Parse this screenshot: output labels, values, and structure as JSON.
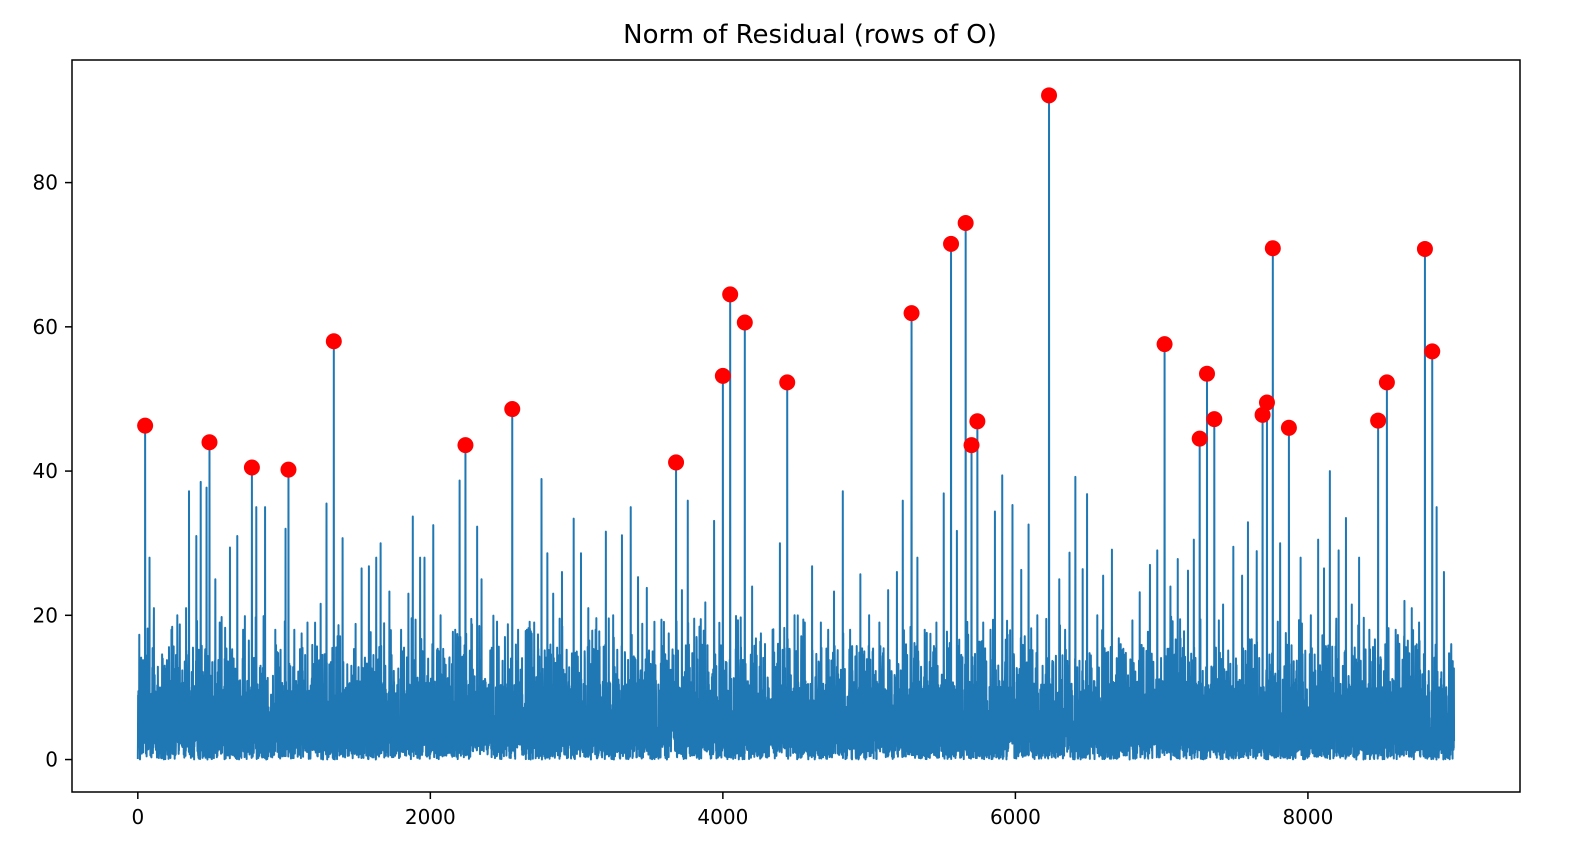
{
  "chart_data": {
    "type": "line",
    "title": "Norm of Residual (rows of O)",
    "xlabel": "",
    "ylabel": "",
    "xlim": [
      -450,
      9450
    ],
    "ylim": [
      -4.5,
      97
    ],
    "x_ticks": [
      0,
      2000,
      4000,
      6000,
      8000
    ],
    "y_ticks": [
      0,
      20,
      40,
      60,
      80
    ],
    "grid": false,
    "legend": "none",
    "n_points": 9000,
    "series": [
      {
        "type": "line",
        "color": "#1f77b4",
        "description_points": "residual norm per row index",
        "spikes": [
          [
            20,
            13
          ],
          [
            50,
            46.3
          ],
          [
            80,
            28
          ],
          [
            110,
            21
          ],
          [
            170,
            14
          ],
          [
            230,
            18
          ],
          [
            270,
            20
          ],
          [
            330,
            21
          ],
          [
            350,
            37.2
          ],
          [
            400,
            31
          ],
          [
            430,
            38.5
          ],
          [
            470,
            37.7
          ],
          [
            490,
            44
          ],
          [
            530,
            25
          ],
          [
            560,
            19
          ],
          [
            630,
            29.4
          ],
          [
            680,
            31
          ],
          [
            720,
            18
          ],
          [
            780,
            40.5
          ],
          [
            810,
            35
          ],
          [
            870,
            35
          ],
          [
            940,
            18
          ],
          [
            1010,
            32
          ],
          [
            1030,
            40.2
          ],
          [
            1070,
            18
          ],
          [
            1120,
            17.5
          ],
          [
            1160,
            19
          ],
          [
            1250,
            21.6
          ],
          [
            1290,
            35.5
          ],
          [
            1340,
            58
          ],
          [
            1400,
            30.7
          ],
          [
            1460,
            13
          ],
          [
            1530,
            26.5
          ],
          [
            1580,
            26.8
          ],
          [
            1630,
            28
          ],
          [
            1660,
            30
          ],
          [
            1720,
            23.3
          ],
          [
            1800,
            18
          ],
          [
            1850,
            23
          ],
          [
            1880,
            33.7
          ],
          [
            1930,
            28
          ],
          [
            1960,
            28
          ],
          [
            2020,
            32.5
          ],
          [
            2070,
            20
          ],
          [
            2130,
            14
          ],
          [
            2170,
            18
          ],
          [
            2200,
            38.7
          ],
          [
            2240,
            43.6
          ],
          [
            2280,
            19.5
          ],
          [
            2320,
            32.3
          ],
          [
            2350,
            25
          ],
          [
            2420,
            15.5
          ],
          [
            2460,
            13
          ],
          [
            2510,
            17
          ],
          [
            2560,
            48.6
          ],
          [
            2600,
            18
          ],
          [
            2660,
            18
          ],
          [
            2710,
            19
          ],
          [
            2760,
            38.9
          ],
          [
            2800,
            28.6
          ],
          [
            2840,
            23
          ],
          [
            2900,
            26
          ],
          [
            2980,
            33.4
          ],
          [
            3030,
            28.6
          ],
          [
            3080,
            21
          ],
          [
            3130,
            18
          ],
          [
            3200,
            31.6
          ],
          [
            3250,
            20
          ],
          [
            3310,
            31.1
          ],
          [
            3370,
            35
          ],
          [
            3420,
            25.3
          ],
          [
            3480,
            23.8
          ],
          [
            3520,
            15
          ],
          [
            3580,
            19.4
          ],
          [
            3630,
            17.5
          ],
          [
            3680,
            41.2
          ],
          [
            3720,
            23.5
          ],
          [
            3760,
            35.9
          ],
          [
            3820,
            17
          ],
          [
            3880,
            21.8
          ],
          [
            3940,
            33.1
          ],
          [
            4000,
            53.2
          ],
          [
            4050,
            64.5
          ],
          [
            4100,
            15.9
          ],
          [
            4150,
            60.6
          ],
          [
            4200,
            24
          ],
          [
            4260,
            17.5
          ],
          [
            4340,
            18
          ],
          [
            4390,
            30
          ],
          [
            4440,
            52.3
          ],
          [
            4490,
            20
          ],
          [
            4560,
            19
          ],
          [
            4610,
            26.8
          ],
          [
            4670,
            19
          ],
          [
            4720,
            18
          ],
          [
            4760,
            23.3
          ],
          [
            4820,
            37.2
          ],
          [
            4870,
            18
          ],
          [
            4940,
            25.7
          ],
          [
            5000,
            20
          ],
          [
            5070,
            19
          ],
          [
            5130,
            23.5
          ],
          [
            5190,
            26
          ],
          [
            5230,
            35.9
          ],
          [
            5290,
            61.9
          ],
          [
            5330,
            28
          ],
          [
            5380,
            18
          ],
          [
            5460,
            19
          ],
          [
            5510,
            36.9
          ],
          [
            5560,
            71.5
          ],
          [
            5600,
            31.7
          ],
          [
            5660,
            74.4
          ],
          [
            5700,
            43.6
          ],
          [
            5740,
            46.9
          ],
          [
            5780,
            19
          ],
          [
            5830,
            18
          ],
          [
            5860,
            34.4
          ],
          [
            5910,
            39.4
          ],
          [
            5980,
            35.3
          ],
          [
            6040,
            26.3
          ],
          [
            6090,
            32.6
          ],
          [
            6150,
            20
          ],
          [
            6230,
            92.1
          ],
          [
            6300,
            25
          ],
          [
            6340,
            18
          ],
          [
            6370,
            28.7
          ],
          [
            6410,
            39.2
          ],
          [
            6460,
            26.4
          ],
          [
            6490,
            36.8
          ],
          [
            6560,
            20
          ],
          [
            6600,
            25.5
          ],
          [
            6660,
            29.1
          ],
          [
            6720,
            16
          ],
          [
            6800,
            19.3
          ],
          [
            6850,
            23.2
          ],
          [
            6920,
            27
          ],
          [
            6970,
            29
          ],
          [
            7020,
            57.6
          ],
          [
            7060,
            24
          ],
          [
            7110,
            27.8
          ],
          [
            7180,
            26.2
          ],
          [
            7220,
            30.5
          ],
          [
            7260,
            44.5
          ],
          [
            7310,
            53.5
          ],
          [
            7360,
            47.2
          ],
          [
            7420,
            21.5
          ],
          [
            7490,
            29.5
          ],
          [
            7550,
            25.5
          ],
          [
            7590,
            32.9
          ],
          [
            7650,
            28.9
          ],
          [
            7690,
            47.8
          ],
          [
            7720,
            49.5
          ],
          [
            7760,
            70.9
          ],
          [
            7810,
            30
          ],
          [
            7870,
            46
          ],
          [
            7950,
            28
          ],
          [
            8020,
            20
          ],
          [
            8070,
            30.5
          ],
          [
            8110,
            26.5
          ],
          [
            8150,
            40
          ],
          [
            8210,
            29
          ],
          [
            8260,
            33.5
          ],
          [
            8300,
            21.5
          ],
          [
            8350,
            28
          ],
          [
            8420,
            18
          ],
          [
            8480,
            47
          ],
          [
            8540,
            52.3
          ],
          [
            8600,
            18
          ],
          [
            8660,
            22
          ],
          [
            8710,
            21
          ],
          [
            8760,
            19
          ],
          [
            8800,
            70.8
          ],
          [
            8850,
            56.6
          ],
          [
            8880,
            35
          ],
          [
            8930,
            26
          ],
          [
            8980,
            16
          ]
        ]
      },
      {
        "type": "scatter",
        "color": "#ff0000",
        "points": [
          [
            50,
            46.3
          ],
          [
            490,
            44
          ],
          [
            780,
            40.5
          ],
          [
            1030,
            40.2
          ],
          [
            1340,
            58
          ],
          [
            2240,
            43.6
          ],
          [
            2560,
            48.6
          ],
          [
            3680,
            41.2
          ],
          [
            4000,
            53.2
          ],
          [
            4050,
            64.5
          ],
          [
            4150,
            60.6
          ],
          [
            4440,
            52.3
          ],
          [
            5290,
            61.9
          ],
          [
            5560,
            71.5
          ],
          [
            5660,
            74.4
          ],
          [
            5700,
            43.6
          ],
          [
            5740,
            46.9
          ],
          [
            6230,
            92.1
          ],
          [
            7020,
            57.6
          ],
          [
            7260,
            44.5
          ],
          [
            7310,
            53.5
          ],
          [
            7360,
            47.2
          ],
          [
            7690,
            47.8
          ],
          [
            7720,
            49.5
          ],
          [
            7760,
            70.9
          ],
          [
            7870,
            46
          ],
          [
            8480,
            47
          ],
          [
            8540,
            52.3
          ],
          [
            8800,
            70.8
          ],
          [
            8850,
            56.6
          ]
        ]
      }
    ]
  }
}
